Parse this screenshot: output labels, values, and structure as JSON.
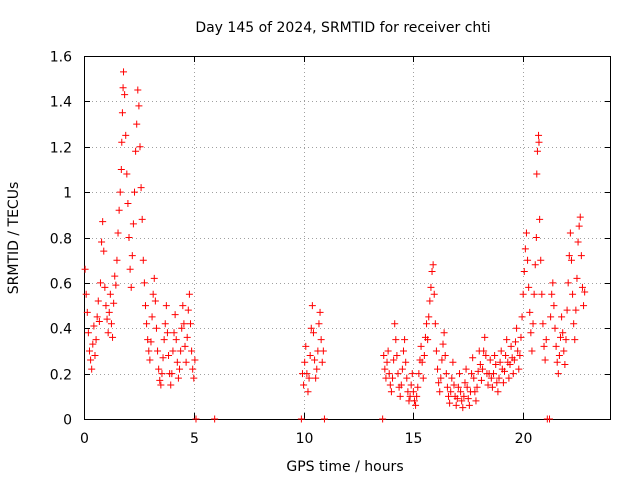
{
  "chart_data": {
    "type": "scatter",
    "title": "Day 145 of 2024, SRMTID for receiver chti",
    "xlabel": "GPS time / hours",
    "ylabel": "SRMTID / TECUs",
    "xlim": [
      0,
      24
    ],
    "ylim": [
      0,
      1.6
    ],
    "x_ticks": [
      0,
      5,
      10,
      15,
      20
    ],
    "y_ticks": [
      0,
      0.2,
      0.4,
      0.6,
      0.8,
      1,
      1.2,
      1.4,
      1.6
    ],
    "x_tick_labels": [
      "0",
      "5",
      "10",
      "15",
      "20"
    ],
    "y_tick_labels": [
      "0",
      "0.2",
      "0.4",
      "0.6",
      "0.8",
      "1",
      "1.2",
      "1.4",
      "1.6"
    ],
    "grid": true,
    "marker": "+",
    "color": "#ff0000",
    "series": [
      {
        "name": "SRMTID",
        "points": [
          [
            0.05,
            0.66
          ],
          [
            0.1,
            0.55
          ],
          [
            0.15,
            0.47
          ],
          [
            0.2,
            0.38
          ],
          [
            0.25,
            0.3
          ],
          [
            0.3,
            0.26
          ],
          [
            0.35,
            0.22
          ],
          [
            0.4,
            0.33
          ],
          [
            0.45,
            0.41
          ],
          [
            0.5,
            0.28
          ],
          [
            0.55,
            0.35
          ],
          [
            0.6,
            0.45
          ],
          [
            0.65,
            0.52
          ],
          [
            0.7,
            0.43
          ],
          [
            0.75,
            0.6
          ],
          [
            0.8,
            0.78
          ],
          [
            0.85,
            0.87
          ],
          [
            0.9,
            0.74
          ],
          [
            0.95,
            0.58
          ],
          [
            1.0,
            0.5
          ],
          [
            1.05,
            0.44
          ],
          [
            1.1,
            0.38
          ],
          [
            1.15,
            0.47
          ],
          [
            1.2,
            0.55
          ],
          [
            1.25,
            0.42
          ],
          [
            1.3,
            0.36
          ],
          [
            1.35,
            0.51
          ],
          [
            1.4,
            0.63
          ],
          [
            1.45,
            0.59
          ],
          [
            1.5,
            0.7
          ],
          [
            1.55,
            0.82
          ],
          [
            1.6,
            0.92
          ],
          [
            1.65,
            1.0
          ],
          [
            1.7,
            1.1
          ],
          [
            1.72,
            1.22
          ],
          [
            1.75,
            1.35
          ],
          [
            1.78,
            1.46
          ],
          [
            1.8,
            1.53
          ],
          [
            1.85,
            1.43
          ],
          [
            1.9,
            1.25
          ],
          [
            1.95,
            1.08
          ],
          [
            2.0,
            0.95
          ],
          [
            2.05,
            0.8
          ],
          [
            2.1,
            0.66
          ],
          [
            2.15,
            0.58
          ],
          [
            2.2,
            0.72
          ],
          [
            2.25,
            0.86
          ],
          [
            2.3,
            1.0
          ],
          [
            2.35,
            1.18
          ],
          [
            2.4,
            1.3
          ],
          [
            2.45,
            1.45
          ],
          [
            2.5,
            1.38
          ],
          [
            2.55,
            1.2
          ],
          [
            2.6,
            1.02
          ],
          [
            2.65,
            0.88
          ],
          [
            2.7,
            0.7
          ],
          [
            2.75,
            0.6
          ],
          [
            2.8,
            0.5
          ],
          [
            2.85,
            0.42
          ],
          [
            2.9,
            0.35
          ],
          [
            2.95,
            0.3
          ],
          [
            3.0,
            0.26
          ],
          [
            3.05,
            0.34
          ],
          [
            3.1,
            0.45
          ],
          [
            3.15,
            0.55
          ],
          [
            3.2,
            0.62
          ],
          [
            3.25,
            0.52
          ],
          [
            3.3,
            0.4
          ],
          [
            3.35,
            0.3
          ],
          [
            3.4,
            0.22
          ],
          [
            3.45,
            0.17
          ],
          [
            3.5,
            0.15
          ],
          [
            3.55,
            0.2
          ],
          [
            3.6,
            0.27
          ],
          [
            3.65,
            0.35
          ],
          [
            3.7,
            0.42
          ],
          [
            3.75,
            0.5
          ],
          [
            3.8,
            0.38
          ],
          [
            3.85,
            0.28
          ],
          [
            3.9,
            0.2
          ],
          [
            3.95,
            0.15
          ],
          [
            4.0,
            0.2
          ],
          [
            4.05,
            0.3
          ],
          [
            4.1,
            0.38
          ],
          [
            4.15,
            0.46
          ],
          [
            4.2,
            0.35
          ],
          [
            4.25,
            0.25
          ],
          [
            4.3,
            0.18
          ],
          [
            4.35,
            0.22
          ],
          [
            4.4,
            0.3
          ],
          [
            4.45,
            0.4
          ],
          [
            4.5,
            0.5
          ],
          [
            4.55,
            0.42
          ],
          [
            4.6,
            0.32
          ],
          [
            4.65,
            0.25
          ],
          [
            4.7,
            0.36
          ],
          [
            4.75,
            0.48
          ],
          [
            4.8,
            0.55
          ],
          [
            4.85,
            0.42
          ],
          [
            4.9,
            0.3
          ],
          [
            4.95,
            0.22
          ],
          [
            5.0,
            0.18
          ],
          [
            5.05,
            0.26
          ],
          [
            5.1,
            0.0
          ],
          [
            5.95,
            0.0
          ],
          [
            9.9,
            0.0
          ],
          [
            9.95,
            0.2
          ],
          [
            10.0,
            0.15
          ],
          [
            10.05,
            0.25
          ],
          [
            10.1,
            0.32
          ],
          [
            10.15,
            0.2
          ],
          [
            10.2,
            0.12
          ],
          [
            10.25,
            0.18
          ],
          [
            10.3,
            0.28
          ],
          [
            10.35,
            0.4
          ],
          [
            10.4,
            0.5
          ],
          [
            10.45,
            0.38
          ],
          [
            10.5,
            0.26
          ],
          [
            10.55,
            0.18
          ],
          [
            10.6,
            0.22
          ],
          [
            10.65,
            0.3
          ],
          [
            10.7,
            0.42
          ],
          [
            10.75,
            0.47
          ],
          [
            10.8,
            0.35
          ],
          [
            10.85,
            0.25
          ],
          [
            10.9,
            0.3
          ],
          [
            10.95,
            0.0
          ],
          [
            13.6,
            0.0
          ],
          [
            13.65,
            0.28
          ],
          [
            13.7,
            0.22
          ],
          [
            13.75,
            0.18
          ],
          [
            13.8,
            0.25
          ],
          [
            13.85,
            0.3
          ],
          [
            13.9,
            0.2
          ],
          [
            13.95,
            0.15
          ],
          [
            14.0,
            0.12
          ],
          [
            14.05,
            0.18
          ],
          [
            14.1,
            0.26
          ],
          [
            14.15,
            0.42
          ],
          [
            14.2,
            0.35
          ],
          [
            14.25,
            0.28
          ],
          [
            14.3,
            0.2
          ],
          [
            14.35,
            0.14
          ],
          [
            14.4,
            0.1
          ],
          [
            14.45,
            0.15
          ],
          [
            14.5,
            0.22
          ],
          [
            14.55,
            0.3
          ],
          [
            14.6,
            0.35
          ],
          [
            14.65,
            0.25
          ],
          [
            14.7,
            0.18
          ],
          [
            14.75,
            0.12
          ],
          [
            14.8,
            0.08
          ],
          [
            14.85,
            0.1
          ],
          [
            14.9,
            0.15
          ],
          [
            14.95,
            0.2
          ],
          [
            15.0,
            0.12
          ],
          [
            15.05,
            0.08
          ],
          [
            15.1,
            0.06
          ],
          [
            15.15,
            0.1
          ],
          [
            15.2,
            0.14
          ],
          [
            15.25,
            0.2
          ],
          [
            15.3,
            0.26
          ],
          [
            15.35,
            0.32
          ],
          [
            15.4,
            0.25
          ],
          [
            15.45,
            0.18
          ],
          [
            15.5,
            0.28
          ],
          [
            15.55,
            0.36
          ],
          [
            15.6,
            0.42
          ],
          [
            15.65,
            0.35
          ],
          [
            15.7,
            0.45
          ],
          [
            15.75,
            0.52
          ],
          [
            15.8,
            0.58
          ],
          [
            15.85,
            0.65
          ],
          [
            15.9,
            0.68
          ],
          [
            15.95,
            0.55
          ],
          [
            16.0,
            0.42
          ],
          [
            16.05,
            0.3
          ],
          [
            16.1,
            0.22
          ],
          [
            16.15,
            0.16
          ],
          [
            16.2,
            0.12
          ],
          [
            16.25,
            0.18
          ],
          [
            16.3,
            0.26
          ],
          [
            16.35,
            0.33
          ],
          [
            16.4,
            0.38
          ],
          [
            16.45,
            0.28
          ],
          [
            16.5,
            0.2
          ],
          [
            16.55,
            0.14
          ],
          [
            16.6,
            0.1
          ],
          [
            16.65,
            0.07
          ],
          [
            16.7,
            0.12
          ],
          [
            16.75,
            0.18
          ],
          [
            16.8,
            0.25
          ],
          [
            16.85,
            0.15
          ],
          [
            16.9,
            0.1
          ],
          [
            16.95,
            0.06
          ],
          [
            17.0,
            0.09
          ],
          [
            17.05,
            0.14
          ],
          [
            17.1,
            0.2
          ],
          [
            17.15,
            0.12
          ],
          [
            17.2,
            0.08
          ],
          [
            17.25,
            0.05
          ],
          [
            17.3,
            0.1
          ],
          [
            17.35,
            0.16
          ],
          [
            17.4,
            0.22
          ],
          [
            17.45,
            0.14
          ],
          [
            17.5,
            0.09
          ],
          [
            17.55,
            0.06
          ],
          [
            17.6,
            0.12
          ],
          [
            17.65,
            0.2
          ],
          [
            17.7,
            0.27
          ],
          [
            17.75,
            0.18
          ],
          [
            17.8,
            0.12
          ],
          [
            17.85,
            0.08
          ],
          [
            17.9,
            0.14
          ],
          [
            17.95,
            0.21
          ],
          [
            18.0,
            0.3
          ],
          [
            18.05,
            0.24
          ],
          [
            18.1,
            0.17
          ],
          [
            18.15,
            0.22
          ],
          [
            18.2,
            0.3
          ],
          [
            18.25,
            0.36
          ],
          [
            18.3,
            0.28
          ],
          [
            18.35,
            0.2
          ],
          [
            18.4,
            0.15
          ],
          [
            18.45,
            0.2
          ],
          [
            18.5,
            0.26
          ],
          [
            18.55,
            0.18
          ],
          [
            18.6,
            0.14
          ],
          [
            18.65,
            0.2
          ],
          [
            18.7,
            0.28
          ],
          [
            18.75,
            0.24
          ],
          [
            18.8,
            0.16
          ],
          [
            18.85,
            0.12
          ],
          [
            18.9,
            0.18
          ],
          [
            18.95,
            0.25
          ],
          [
            19.0,
            0.3
          ],
          [
            19.05,
            0.22
          ],
          [
            19.1,
            0.16
          ],
          [
            19.15,
            0.21
          ],
          [
            19.2,
            0.28
          ],
          [
            19.25,
            0.35
          ],
          [
            19.3,
            0.25
          ],
          [
            19.35,
            0.18
          ],
          [
            19.4,
            0.24
          ],
          [
            19.45,
            0.32
          ],
          [
            19.5,
            0.27
          ],
          [
            19.55,
            0.2
          ],
          [
            19.6,
            0.26
          ],
          [
            19.65,
            0.34
          ],
          [
            19.7,
            0.4
          ],
          [
            19.75,
            0.3
          ],
          [
            19.8,
            0.22
          ],
          [
            19.85,
            0.28
          ],
          [
            19.9,
            0.36
          ],
          [
            19.95,
            0.45
          ],
          [
            20.0,
            0.55
          ],
          [
            20.05,
            0.65
          ],
          [
            20.1,
            0.75
          ],
          [
            20.15,
            0.82
          ],
          [
            20.2,
            0.7
          ],
          [
            20.25,
            0.58
          ],
          [
            20.3,
            0.47
          ],
          [
            20.35,
            0.38
          ],
          [
            20.4,
            0.3
          ],
          [
            20.45,
            0.42
          ],
          [
            20.5,
            0.55
          ],
          [
            20.55,
            0.68
          ],
          [
            20.6,
            0.8
          ],
          [
            20.62,
            1.08
          ],
          [
            20.65,
            1.18
          ],
          [
            20.7,
            1.25
          ],
          [
            20.72,
            1.22
          ],
          [
            20.75,
            0.88
          ],
          [
            20.8,
            0.7
          ],
          [
            20.85,
            0.55
          ],
          [
            20.9,
            0.42
          ],
          [
            20.95,
            0.32
          ],
          [
            21.0,
            0.26
          ],
          [
            21.05,
            0.35
          ],
          [
            21.1,
            0.0
          ],
          [
            21.2,
            0.0
          ],
          [
            21.25,
            0.45
          ],
          [
            21.3,
            0.55
          ],
          [
            21.35,
            0.6
          ],
          [
            21.4,
            0.5
          ],
          [
            21.45,
            0.4
          ],
          [
            21.5,
            0.32
          ],
          [
            21.55,
            0.25
          ],
          [
            21.6,
            0.2
          ],
          [
            21.65,
            0.28
          ],
          [
            21.7,
            0.36
          ],
          [
            21.75,
            0.45
          ],
          [
            21.8,
            0.38
          ],
          [
            21.85,
            0.3
          ],
          [
            21.9,
            0.24
          ],
          [
            21.95,
            0.35
          ],
          [
            22.0,
            0.48
          ],
          [
            22.05,
            0.6
          ],
          [
            22.1,
            0.72
          ],
          [
            22.15,
            0.82
          ],
          [
            22.2,
            0.7
          ],
          [
            22.25,
            0.55
          ],
          [
            22.3,
            0.42
          ],
          [
            22.35,
            0.35
          ],
          [
            22.4,
            0.48
          ],
          [
            22.45,
            0.62
          ],
          [
            22.5,
            0.78
          ],
          [
            22.55,
            0.85
          ],
          [
            22.6,
            0.89
          ],
          [
            22.65,
            0.72
          ],
          [
            22.7,
            0.58
          ],
          [
            22.75,
            0.5
          ],
          [
            22.8,
            0.56
          ]
        ]
      }
    ]
  }
}
